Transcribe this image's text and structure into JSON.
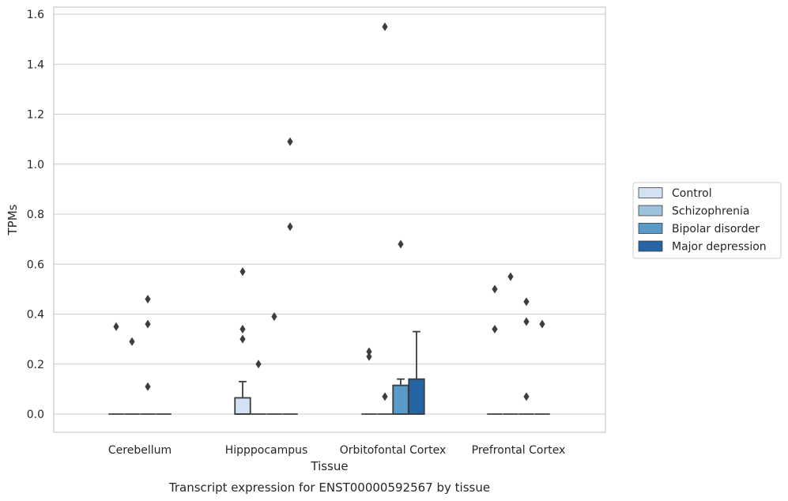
{
  "chart_data": {
    "type": "box",
    "title": "Transcript expression for ENST00000592567 by tissue",
    "xlabel": "Tissue",
    "ylabel": "TPMs",
    "ylim": [
      -0.075,
      1.63
    ],
    "yticks": [
      0.0,
      0.2,
      0.4,
      0.6,
      0.8,
      1.0,
      1.2,
      1.4,
      1.6
    ],
    "ytick_labels": [
      "0.0",
      "0.2",
      "0.4",
      "0.6",
      "0.8",
      "1.0",
      "1.2",
      "1.4",
      "1.6"
    ],
    "categories": [
      "Cerebellum",
      "Hipppocampus",
      "Orbitofontal Cortex",
      "Prefrontal Cortex"
    ],
    "grid": true,
    "legend_position": "right",
    "series": [
      {
        "name": "Control",
        "color": "#d2e2f2",
        "boxes": [
          {
            "q1": 0.0,
            "median": 0.0,
            "q3": 0.0,
            "whisker_low": 0.0,
            "whisker_high": 0.0,
            "outliers": [
              0.35
            ]
          },
          {
            "q1": 0.0,
            "median": 0.0,
            "q3": 0.065,
            "whisker_low": 0.0,
            "whisker_high": 0.13,
            "outliers": [
              0.57,
              0.34,
              0.3
            ]
          },
          {
            "q1": 0.0,
            "median": 0.0,
            "q3": 0.0,
            "whisker_low": 0.0,
            "whisker_high": 0.0,
            "outliers": [
              0.25,
              0.23
            ]
          },
          {
            "q1": 0.0,
            "median": 0.0,
            "q3": 0.0,
            "whisker_low": 0.0,
            "whisker_high": 0.0,
            "outliers": [
              0.5,
              0.34
            ]
          }
        ]
      },
      {
        "name": "Schizophrenia",
        "color": "#9dc2dd",
        "boxes": [
          {
            "q1": 0.0,
            "median": 0.0,
            "q3": 0.0,
            "whisker_low": 0.0,
            "whisker_high": 0.0,
            "outliers": [
              0.29
            ]
          },
          {
            "q1": 0.0,
            "median": 0.0,
            "q3": 0.0,
            "whisker_low": 0.0,
            "whisker_high": 0.0,
            "outliers": [
              0.2
            ]
          },
          {
            "q1": 0.0,
            "median": 0.0,
            "q3": 0.0,
            "whisker_low": 0.0,
            "whisker_high": 0.0,
            "outliers": [
              1.55,
              0.07
            ]
          },
          {
            "q1": 0.0,
            "median": 0.0,
            "q3": 0.0,
            "whisker_low": 0.0,
            "whisker_high": 0.0,
            "outliers": [
              0.55
            ]
          }
        ]
      },
      {
        "name": "Bipolar disorder",
        "color": "#5a9ac8",
        "boxes": [
          {
            "q1": 0.0,
            "median": 0.0,
            "q3": 0.0,
            "whisker_low": 0.0,
            "whisker_high": 0.0,
            "outliers": [
              0.46,
              0.36,
              0.11
            ]
          },
          {
            "q1": 0.0,
            "median": 0.0,
            "q3": 0.0,
            "whisker_low": 0.0,
            "whisker_high": 0.0,
            "outliers": [
              0.39
            ]
          },
          {
            "q1": 0.0,
            "median": 0.0,
            "q3": 0.115,
            "whisker_low": 0.0,
            "whisker_high": 0.14,
            "outliers": [
              0.68
            ]
          },
          {
            "q1": 0.0,
            "median": 0.0,
            "q3": 0.0,
            "whisker_low": 0.0,
            "whisker_high": 0.0,
            "outliers": [
              0.45,
              0.37,
              0.07
            ]
          }
        ]
      },
      {
        "name": "Major depression",
        "color": "#2565a5",
        "boxes": [
          {
            "q1": 0.0,
            "median": 0.0,
            "q3": 0.0,
            "whisker_low": 0.0,
            "whisker_high": 0.0,
            "outliers": []
          },
          {
            "q1": 0.0,
            "median": 0.0,
            "q3": 0.0,
            "whisker_low": 0.0,
            "whisker_high": 0.0,
            "outliers": [
              1.09,
              0.75
            ]
          },
          {
            "q1": 0.0,
            "median": 0.0,
            "q3": 0.14,
            "whisker_low": 0.0,
            "whisker_high": 0.33,
            "outliers": []
          },
          {
            "q1": 0.0,
            "median": 0.0,
            "q3": 0.0,
            "whisker_low": 0.0,
            "whisker_high": 0.0,
            "outliers": [
              0.36
            ]
          }
        ]
      }
    ]
  }
}
